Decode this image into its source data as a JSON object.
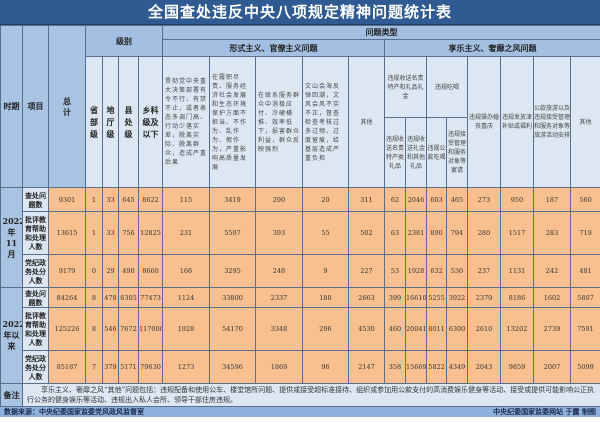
{
  "title": "全国查处违反中央八项规定精神问题统计表",
  "header": {
    "period": "时期",
    "item": "项目",
    "total": "总计",
    "level": "级别",
    "problem_type": "问题类型",
    "levels": [
      "省部级",
      "地厅级",
      "县处级",
      "乡科级及以下"
    ],
    "formalism": "形式主义、官僚主义问题",
    "hedonism": "享乐主义、奢靡之风问题",
    "formalism_cols": [
      "贯彻党中央重大决策部署有令不行、有禁不止，或者表态多调门高、行动少落实差，脱离实际、脱离群众，造成严重后果",
      "在履职尽责、服务经济社会发展和生态环境保护方面不担当、不作为、乱作为、假作为，严重影响高质量发展",
      "在联系服务群众中消极应付、冷硬横推、效率低下，损害群众利益，群众反映强烈",
      "文山会海反弹回潮，文风会风不实不正，督查检查考核过多过频、过度留痕，给基层造成严重负担",
      "其他"
    ],
    "gifts_group": "违规收送名贵特产和礼品礼金",
    "gifts_cols": [
      "违规收送名贵特产类礼品",
      "违规收送礼金和其他礼品"
    ],
    "dining_group": "违规吃喝",
    "dining_cols": [
      "违规公款吃喝",
      "违规接受管理和服务对象等宴请"
    ],
    "hedonism_cols": [
      "违规操办婚丧喜庆",
      "违规发放津补贴或福利",
      "公款旅游以及违规接受管理和服务对象等旅游活动安排",
      "其他"
    ]
  },
  "groups": [
    {
      "period": "2022年11月",
      "rows": [
        {
          "item": "查处问题数",
          "values": [
            "9301",
            "1",
            "33",
            "645",
            "8622",
            "115",
            "3419",
            "290",
            "20",
            "311",
            "62",
            "2046",
            "603",
            "465",
            "273",
            "950",
            "187",
            "560"
          ]
        },
        {
          "item": "批评教育帮助和处理人数",
          "values": [
            "13615",
            "1",
            "33",
            "756",
            "12825",
            "231",
            "5507",
            "393",
            "55",
            "502",
            "63",
            "2381",
            "890",
            "794",
            "280",
            "1517",
            "283",
            "719"
          ]
        },
        {
          "item": "党纪政务处分人数",
          "values": [
            "9179",
            "0",
            "29",
            "490",
            "8660",
            "166",
            "3295",
            "248",
            "9",
            "227",
            "53",
            "1928",
            "632",
            "530",
            "237",
            "1131",
            "242",
            "481"
          ]
        }
      ]
    },
    {
      "period": "2022年以来",
      "rows": [
        {
          "item": "查处问题数",
          "values": [
            "84264",
            "8",
            "478",
            "6305",
            "77473",
            "1124",
            "33800",
            "2337",
            "180",
            "2663",
            "399",
            "16610",
            "5255",
            "3922",
            "2379",
            "8186",
            "1602",
            "5807"
          ]
        },
        {
          "item": "批评教育帮助和处理人数",
          "values": [
            "125226",
            "8",
            "546",
            "7672",
            "117000",
            "1928",
            "54170",
            "3348",
            "296",
            "4530",
            "460",
            "20041",
            "8011",
            "6300",
            "2610",
            "13202",
            "2739",
            "7591"
          ]
        },
        {
          "item": "党纪政务处分人数",
          "values": [
            "85187",
            "7",
            "379",
            "5171",
            "79630",
            "1273",
            "34596",
            "1869",
            "96",
            "2147",
            "358",
            "15669",
            "5822",
            "4349",
            "2043",
            "9859",
            "2007",
            "5099"
          ]
        }
      ]
    }
  ],
  "note": {
    "label": "备注",
    "text": "享乐主义、奢靡之风“其他”问题包括：违规配备和使用公车、楼堂馆所问题、提供或接受超标准接待、组织或参加用公款支付的高消费娱乐健身等活动、接受或提供可能影响公正执行公务的健身娱乐等活动、违规出入私人会所、领导干部住房违规。"
  },
  "footer": {
    "source": "数据来源：中央纪委国家监委党风政风监督室",
    "credit": "中央纪委国家监委网站  于露  制图"
  },
  "colors": {
    "title_bg": "#2f5b92",
    "header_bg": "#a3bfe2",
    "desc_bg": "#dde7f3",
    "data_bg": "#f8c08e"
  }
}
